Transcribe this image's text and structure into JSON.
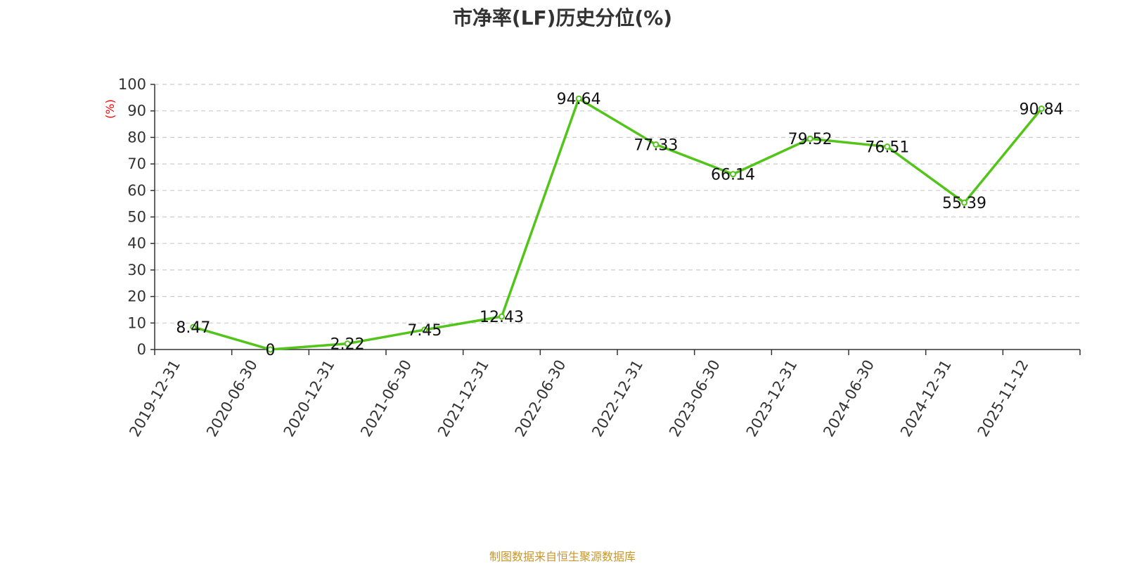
{
  "chart_data": {
    "type": "line",
    "title": "市净率(LF)历史分位(%)",
    "ylabel": "(%)",
    "xlabel": "",
    "ylim": [
      0,
      100
    ],
    "yticks": [
      "0",
      "10",
      "20",
      "30",
      "40",
      "50",
      "60",
      "70",
      "80",
      "90",
      "100"
    ],
    "grid": true,
    "categories": [
      "2019-12-31",
      "2020-06-30",
      "2020-12-31",
      "2021-06-30",
      "2021-12-31",
      "2022-06-30",
      "2022-12-31",
      "2023-06-30",
      "2023-12-31",
      "2024-06-30",
      "2024-12-31",
      "2025-11-12"
    ],
    "series": [
      {
        "values": [
          8.47,
          0,
          2.22,
          7.45,
          12.43,
          94.64,
          77.33,
          66.14,
          79.52,
          76.51,
          55.39,
          90.84
        ],
        "labels": [
          "8.47",
          "0",
          "2.22",
          "7.45",
          "12.43",
          "94.64",
          "77.33",
          "66.14",
          "79.52",
          "76.51",
          "55.39",
          "90.84"
        ],
        "color": "#52c41a"
      }
    ]
  },
  "colors": {
    "line": "#52c41a",
    "ylabel": "#ff0000",
    "grid": "#cccccc",
    "axis": "#333333",
    "source": "#c8962a"
  },
  "source_note": "制图数据来自恒生聚源数据库"
}
